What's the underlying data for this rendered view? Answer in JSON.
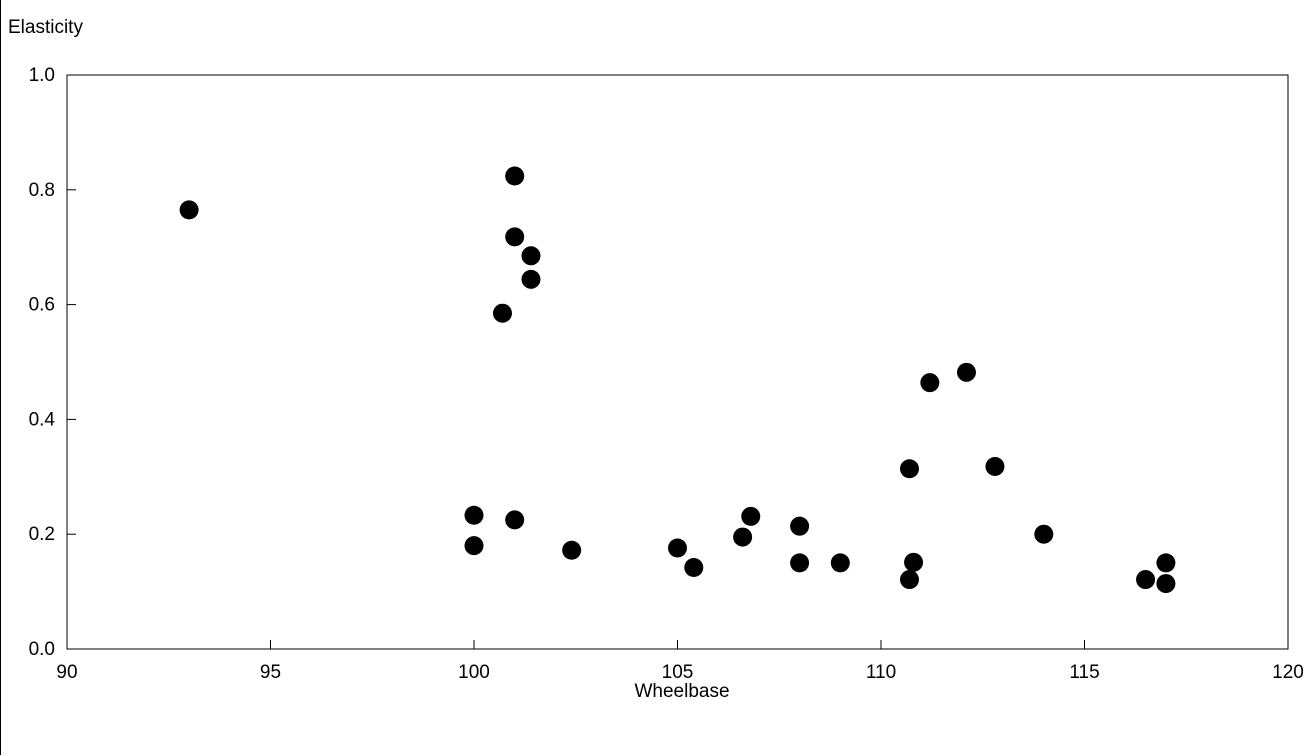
{
  "chart_data": {
    "type": "scatter",
    "title": "",
    "xlabel": "Wheelbase",
    "ylabel": "Elasticity",
    "xlim": [
      90,
      120
    ],
    "ylim": [
      0.0,
      1.0
    ],
    "x_ticks": [
      "90",
      "95",
      "100",
      "105",
      "110",
      "115",
      "120"
    ],
    "y_ticks": [
      "0.0",
      "0.2",
      "0.4",
      "0.6",
      "0.8",
      "1.0"
    ],
    "grid": false,
    "marker_color": "#000000",
    "points": [
      {
        "x": 93.0,
        "y": 0.765
      },
      {
        "x": 101.0,
        "y": 0.824
      },
      {
        "x": 101.0,
        "y": 0.718
      },
      {
        "x": 101.4,
        "y": 0.685
      },
      {
        "x": 101.4,
        "y": 0.644
      },
      {
        "x": 100.7,
        "y": 0.585
      },
      {
        "x": 100.0,
        "y": 0.233
      },
      {
        "x": 100.0,
        "y": 0.18
      },
      {
        "x": 101.0,
        "y": 0.225
      },
      {
        "x": 102.4,
        "y": 0.172
      },
      {
        "x": 105.0,
        "y": 0.176
      },
      {
        "x": 105.4,
        "y": 0.142
      },
      {
        "x": 106.6,
        "y": 0.195
      },
      {
        "x": 106.8,
        "y": 0.231
      },
      {
        "x": 108.0,
        "y": 0.214
      },
      {
        "x": 108.0,
        "y": 0.15
      },
      {
        "x": 109.0,
        "y": 0.15
      },
      {
        "x": 110.7,
        "y": 0.314
      },
      {
        "x": 110.8,
        "y": 0.151
      },
      {
        "x": 110.7,
        "y": 0.121
      },
      {
        "x": 111.2,
        "y": 0.464
      },
      {
        "x": 112.1,
        "y": 0.482
      },
      {
        "x": 112.8,
        "y": 0.318
      },
      {
        "x": 114.0,
        "y": 0.2
      },
      {
        "x": 116.5,
        "y": 0.121
      },
      {
        "x": 117.0,
        "y": 0.15
      },
      {
        "x": 117.0,
        "y": 0.114
      }
    ]
  }
}
